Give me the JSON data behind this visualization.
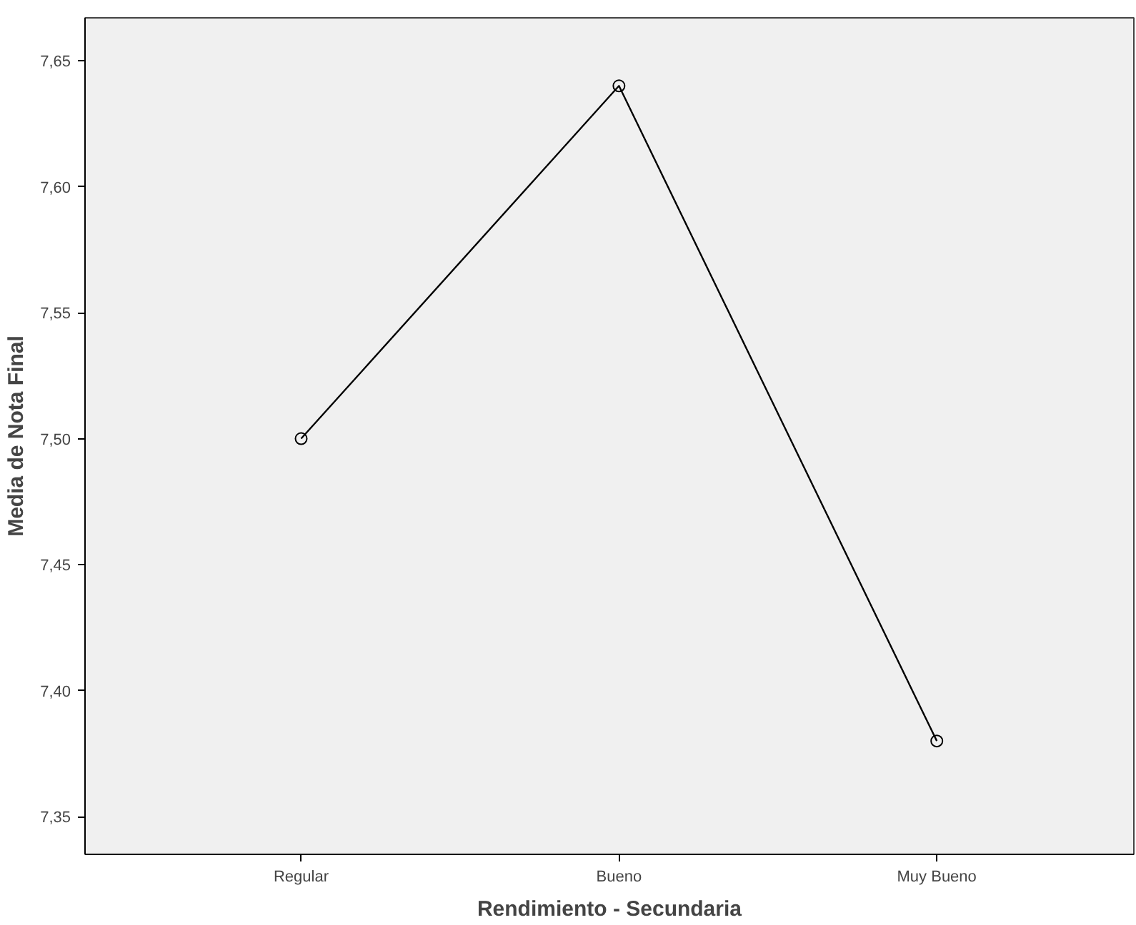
{
  "chart_data": {
    "type": "line",
    "xlabel": "Rendimiento - Secundaria",
    "ylabel": "Media de Nota Final",
    "categories": [
      "Regular",
      "Bueno",
      "Muy Bueno"
    ],
    "series": [
      {
        "color": "#000000",
        "values": [
          7.5,
          7.64,
          7.38
        ]
      }
    ],
    "ylim": [
      7.335,
      7.667
    ],
    "yticks": [
      {
        "value": 7.35,
        "label": "7,35"
      },
      {
        "value": 7.4,
        "label": "7,40"
      },
      {
        "value": 7.45,
        "label": "7,45"
      },
      {
        "value": 7.5,
        "label": "7,50"
      },
      {
        "value": 7.55,
        "label": "7,55"
      },
      {
        "value": 7.6,
        "label": "7,60"
      },
      {
        "value": 7.65,
        "label": "7,65"
      }
    ],
    "marker": "circle",
    "line_style": "solid"
  }
}
